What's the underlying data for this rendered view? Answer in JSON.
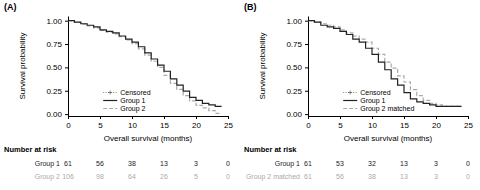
{
  "chart_data": [
    {
      "type": "step",
      "title": "(A)",
      "x_label": "Overall survival (months)",
      "y_label": "Survival probability",
      "xlim": [
        0,
        25
      ],
      "ylim": [
        -0.02,
        1.05
      ],
      "xticks": [
        0,
        5,
        10,
        15,
        20,
        25
      ],
      "yticks": [
        {
          "value": 0.0,
          "label": "0.00"
        },
        {
          "value": 0.25,
          "label": "0.25"
        },
        {
          "value": 0.5,
          "label": "0.50"
        },
        {
          "value": 0.75,
          "label": "0.75"
        },
        {
          "value": 1.0,
          "label": "1.00"
        }
      ],
      "grid": false,
      "legend": "lower left",
      "censored_label": "Censored",
      "number_at_risk_label": "Number at risk",
      "x": [
        0,
        0.5,
        1,
        1.5,
        2,
        2.5,
        3,
        3.5,
        4,
        4.5,
        5,
        5.5,
        6,
        6.5,
        7,
        7.5,
        8,
        8.5,
        9,
        9.5,
        10,
        10.5,
        11,
        11.5,
        12,
        12.5,
        13,
        13.5,
        14,
        14.5,
        15,
        15.5,
        16,
        16.5,
        17,
        17.5,
        18,
        18.5,
        19,
        19.5,
        20,
        20.5,
        21,
        21.5,
        22,
        22.5,
        23,
        24
      ],
      "series": [
        {
          "name": "Group 1",
          "color": "#222222",
          "line_style": "solid",
          "values": [
            1.0,
            1.0,
            0.984,
            0.984,
            0.967,
            0.967,
            0.951,
            0.951,
            0.934,
            0.934,
            0.902,
            0.902,
            0.885,
            0.885,
            0.869,
            0.869,
            0.836,
            0.836,
            0.803,
            0.803,
            0.77,
            0.77,
            0.721,
            0.721,
            0.656,
            0.656,
            0.59,
            0.59,
            0.525,
            0.525,
            0.459,
            0.459,
            0.377,
            0.377,
            0.311,
            0.311,
            0.246,
            0.246,
            0.18,
            0.18,
            0.148,
            0.148,
            0.115,
            0.115,
            0.098,
            0.098,
            0.082,
            0.082
          ],
          "at_risk": [
            61,
            56,
            38,
            13,
            3,
            0
          ]
        },
        {
          "name": "Group 2",
          "color": "#aaaaaa",
          "line_style": "dashed",
          "values": [
            1.0,
            1.0,
            0.981,
            0.981,
            0.962,
            0.962,
            0.943,
            0.943,
            0.924,
            0.924,
            0.896,
            0.896,
            0.877,
            0.877,
            0.858,
            0.858,
            0.83,
            0.83,
            0.793,
            0.793,
            0.755,
            0.755,
            0.698,
            0.698,
            0.632,
            0.632,
            0.566,
            0.566,
            0.5,
            0.5,
            0.415,
            0.415,
            0.33,
            0.33,
            0.264,
            0.264,
            0.198,
            0.198,
            0.142,
            0.142,
            0.094,
            0.094,
            0.066,
            0.066,
            0.038,
            0.038,
            0.009,
            0.009
          ],
          "at_risk": [
            106,
            98,
            64,
            26,
            5,
            0
          ]
        }
      ]
    },
    {
      "type": "step",
      "title": "(B)",
      "x_label": "Overall survival (months)",
      "y_label": "Survival probability",
      "xlim": [
        0,
        25
      ],
      "ylim": [
        -0.02,
        1.05
      ],
      "xticks": [
        0,
        5,
        10,
        15,
        20,
        25
      ],
      "yticks": [
        {
          "value": 0.0,
          "label": "0.00"
        },
        {
          "value": 0.25,
          "label": "0.25"
        },
        {
          "value": 0.5,
          "label": "0.50"
        },
        {
          "value": 0.75,
          "label": "0.75"
        },
        {
          "value": 1.0,
          "label": "1.00"
        }
      ],
      "grid": false,
      "legend": "lower left",
      "censored_label": "Censored",
      "number_at_risk_label": "Number at risk",
      "x": [
        0,
        0.5,
        1,
        1.5,
        2,
        2.5,
        3,
        3.5,
        4,
        4.5,
        5,
        5.5,
        6,
        6.5,
        7,
        7.5,
        8,
        8.5,
        9,
        9.5,
        10,
        10.5,
        11,
        11.5,
        12,
        12.5,
        13,
        13.5,
        14,
        14.5,
        15,
        15.5,
        16,
        16.5,
        17,
        17.5,
        18,
        18.5,
        19,
        19.5,
        20,
        20.5,
        21,
        21.5,
        22,
        22.5,
        23,
        24
      ],
      "series": [
        {
          "name": "Group 1",
          "color": "#222222",
          "line_style": "solid",
          "values": [
            1.0,
            1.0,
            0.984,
            0.984,
            0.951,
            0.951,
            0.934,
            0.934,
            0.918,
            0.918,
            0.885,
            0.885,
            0.852,
            0.852,
            0.803,
            0.803,
            0.77,
            0.77,
            0.705,
            0.705,
            0.639,
            0.639,
            0.557,
            0.557,
            0.475,
            0.475,
            0.377,
            0.377,
            0.311,
            0.311,
            0.23,
            0.23,
            0.164,
            0.164,
            0.131,
            0.131,
            0.115,
            0.115,
            0.098,
            0.098,
            0.082,
            0.082,
            0.082,
            0.082,
            0.082,
            0.082,
            0.082,
            0.082
          ],
          "at_risk": [
            61,
            53,
            32,
            13,
            3,
            0
          ]
        },
        {
          "name": "Group 2 matched",
          "color": "#aaaaaa",
          "line_style": "dashed",
          "values": [
            1.0,
            1.0,
            0.984,
            0.984,
            0.967,
            0.967,
            0.951,
            0.951,
            0.934,
            0.934,
            0.902,
            0.902,
            0.869,
            0.869,
            0.836,
            0.836,
            0.803,
            0.803,
            0.77,
            0.77,
            0.705,
            0.705,
            0.639,
            0.639,
            0.557,
            0.557,
            0.492,
            0.492,
            0.41,
            0.41,
            0.344,
            0.344,
            0.262,
            0.262,
            0.197,
            0.197,
            0.148,
            0.148,
            0.115,
            0.115,
            0.098,
            0.098,
            0.082,
            0.082,
            0.082,
            0.082,
            0.082,
            0.082
          ],
          "at_risk": [
            61,
            56,
            38,
            13,
            3,
            0
          ]
        }
      ]
    }
  ]
}
